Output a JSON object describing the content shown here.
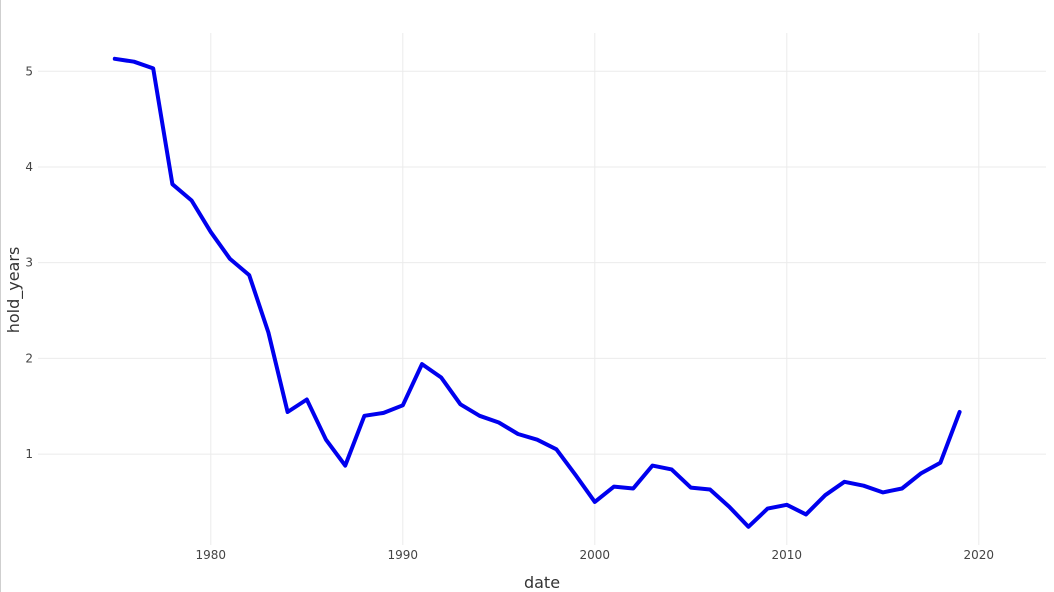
{
  "chart_data": {
    "type": "line",
    "xlabel": "date",
    "ylabel": "hold_years",
    "xlim": [
      1971,
      2023.5
    ],
    "ylim": [
      0.05,
      5.4
    ],
    "x_ticks": [
      1980,
      1990,
      2000,
      2010,
      2020
    ],
    "y_ticks": [
      1,
      2,
      3,
      4,
      5
    ],
    "grid": true,
    "series": [
      {
        "color": "#0000ee",
        "x": [
          1975,
          1976,
          1977,
          1978,
          1979,
          1980,
          1981,
          1982,
          1983,
          1984,
          1985,
          1986,
          1987,
          1988,
          1989,
          1990,
          1991,
          1992,
          1993,
          1994,
          1995,
          1996,
          1997,
          1998,
          1999,
          2000,
          2001,
          2002,
          2003,
          2004,
          2005,
          2006,
          2007,
          2008,
          2009,
          2010,
          2011,
          2012,
          2013,
          2014,
          2015,
          2016,
          2017,
          2018,
          2019
        ],
        "y": [
          5.13,
          5.1,
          5.03,
          3.82,
          3.65,
          3.32,
          3.04,
          2.87,
          2.27,
          1.44,
          1.57,
          1.15,
          0.88,
          1.4,
          1.43,
          1.51,
          1.94,
          1.8,
          1.52,
          1.4,
          1.33,
          1.21,
          1.15,
          1.05,
          0.78,
          0.5,
          0.66,
          0.64,
          0.88,
          0.84,
          0.65,
          0.63,
          0.45,
          0.24,
          0.43,
          0.47,
          0.37,
          0.57,
          0.71,
          0.67,
          0.6,
          0.64,
          0.8,
          0.91,
          1.44
        ]
      }
    ]
  }
}
